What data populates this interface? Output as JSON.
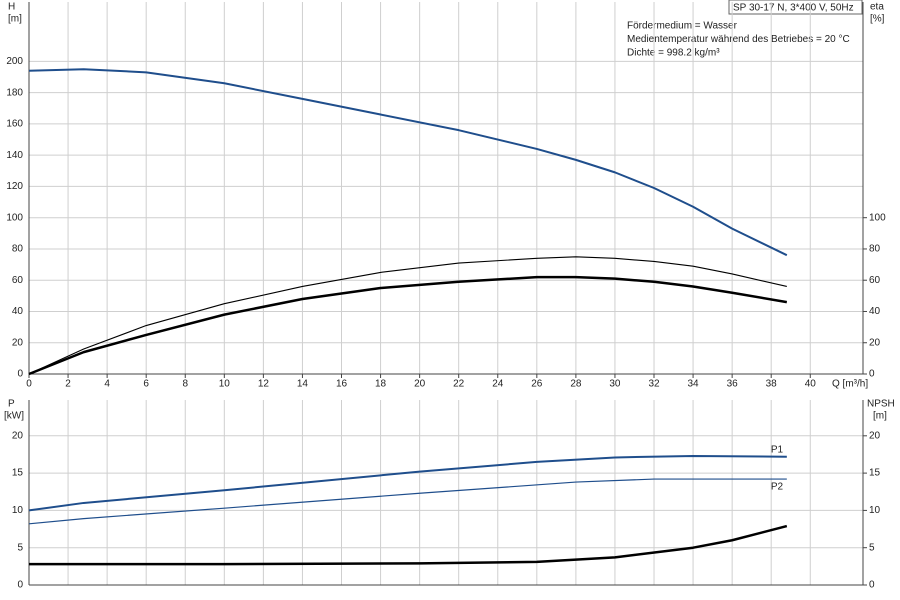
{
  "chart_data": [
    {
      "type": "line",
      "y_label": "H",
      "y_unit": "[m]",
      "y2_label": "eta",
      "y2_unit": "[%]",
      "x_label": "Q [m³/h]",
      "info_box": "SP 30-17 N, 3*400 V, 50Hz",
      "annotations": [
        "Fördermedium = Wasser",
        "Medientemperatur während des Betriebes = 20 °C",
        "Dichte = 998.2 kg/m³"
      ],
      "grid": true,
      "xlim": [
        0,
        42.7
      ],
      "xticks": [
        0,
        2,
        4,
        6,
        8,
        10,
        12,
        14,
        16,
        18,
        20,
        22,
        24,
        26,
        28,
        30,
        32,
        34,
        36,
        38,
        40
      ],
      "ylim": [
        0,
        238
      ],
      "yticks": [
        0,
        20,
        40,
        60,
        80,
        100,
        120,
        140,
        160,
        180,
        200
      ],
      "y2lim": [
        0,
        238
      ],
      "y2ticks": [
        0,
        20,
        40,
        60,
        80,
        100
      ],
      "series": [
        {
          "color": "#1f4e8c",
          "x": [
            0,
            2.8,
            6,
            10,
            14,
            18,
            22,
            26,
            28,
            30,
            32,
            34,
            36,
            38.8
          ],
          "values": [
            194,
            195,
            193,
            186,
            176,
            166,
            156,
            144,
            137,
            129,
            119,
            107,
            93,
            76
          ]
        },
        {
          "color": "#000000",
          "axis": "y2",
          "x": [
            0,
            2.8,
            6,
            10,
            14,
            18,
            22,
            26,
            28,
            30,
            32,
            34,
            36,
            38.8
          ],
          "values": [
            0,
            16,
            31,
            45,
            56,
            65,
            71,
            74,
            75,
            74,
            72,
            69,
            64,
            56
          ]
        },
        {
          "color": "#000000",
          "axis": "y2",
          "x": [
            0,
            2.8,
            6,
            10,
            14,
            18,
            22,
            26,
            28,
            30,
            32,
            34,
            36,
            38.8
          ],
          "values": [
            0,
            14,
            25,
            38,
            48,
            55,
            59,
            62,
            62,
            61,
            59,
            56,
            52,
            46
          ]
        }
      ]
    },
    {
      "type": "line",
      "y_label": "P",
      "y_unit": "[kW]",
      "y2_label": "NPSH",
      "y2_unit": "[m]",
      "grid": true,
      "xlim": [
        0,
        42.7
      ],
      "ylim": [
        0,
        24.8
      ],
      "yticks": [
        0,
        5,
        10,
        15,
        20
      ],
      "y2lim": [
        0,
        24.8
      ],
      "y2ticks": [
        0,
        5,
        10,
        15,
        20
      ],
      "series": [
        {
          "name": "P1",
          "color": "#1f4e8c",
          "x": [
            0,
            2.8,
            10,
            20,
            26,
            30,
            34,
            38.8
          ],
          "values": [
            10,
            11,
            12.7,
            15.2,
            16.5,
            17.1,
            17.3,
            17.2
          ]
        },
        {
          "name": "P2",
          "color": "#1f4e8c",
          "x": [
            0,
            2.8,
            10,
            20,
            28,
            32,
            38.8
          ],
          "values": [
            8.2,
            8.9,
            10.3,
            12.3,
            13.8,
            14.2,
            14.2
          ]
        },
        {
          "color": "#000000",
          "axis": "y2",
          "x": [
            0,
            10,
            20,
            26,
            30,
            34,
            36,
            38.8
          ],
          "values": [
            2.8,
            2.8,
            2.9,
            3.1,
            3.7,
            5.0,
            6.0,
            7.9
          ]
        }
      ]
    }
  ]
}
